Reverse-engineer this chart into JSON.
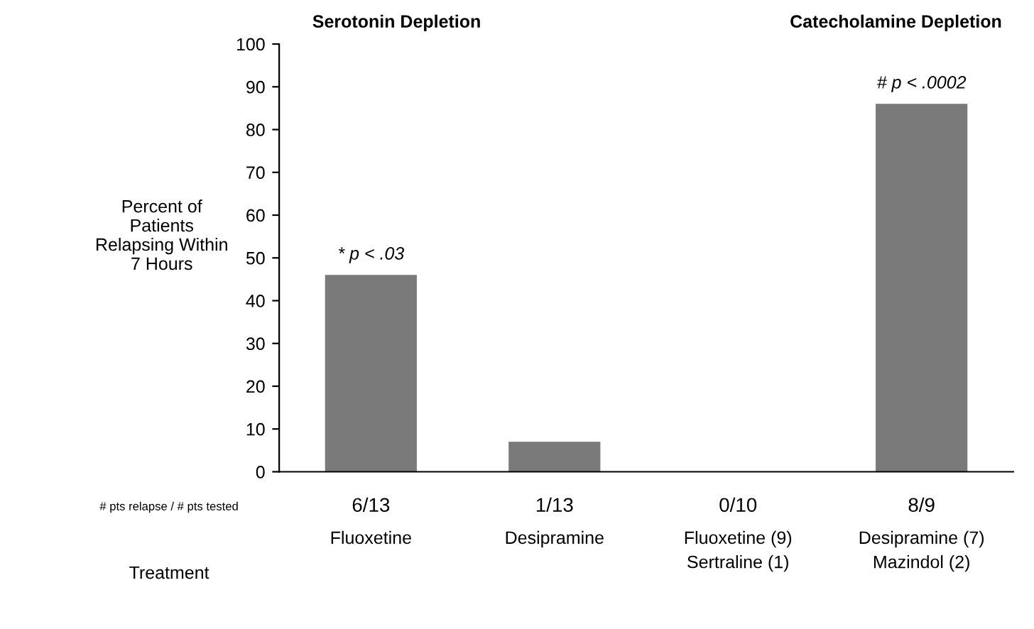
{
  "chart_data": {
    "type": "bar",
    "ylabel": "Percent of Patients Relapsing Within 7 Hours",
    "categories": [
      "Fluoxetine",
      "Desipramine",
      "Fluoxetine (9)\nSertraline (1)",
      "Desipramine (7)\nMazindol (2)"
    ],
    "values": [
      46,
      7,
      0,
      86
    ],
    "value_labels": [
      "6/13",
      "1/13",
      "0/10",
      "8/9"
    ],
    "color": "#7a7a7a",
    "ylim": [
      0,
      100
    ],
    "yticks": [
      0,
      10,
      20,
      30,
      40,
      50,
      60,
      70,
      80,
      90,
      100
    ],
    "grid": false,
    "legend": false,
    "annotations": [
      {
        "text": "* p < .03",
        "x": "Fluoxetine",
        "y": 46
      },
      {
        "text": "# p < .0002",
        "x": "Desipramine (7)\nMazindol (2)",
        "y": 86
      },
      "Serotonin Depletion",
      "Catecholamine Depletion",
      "# pts relapse / # pts tested",
      "Treatment"
    ]
  }
}
